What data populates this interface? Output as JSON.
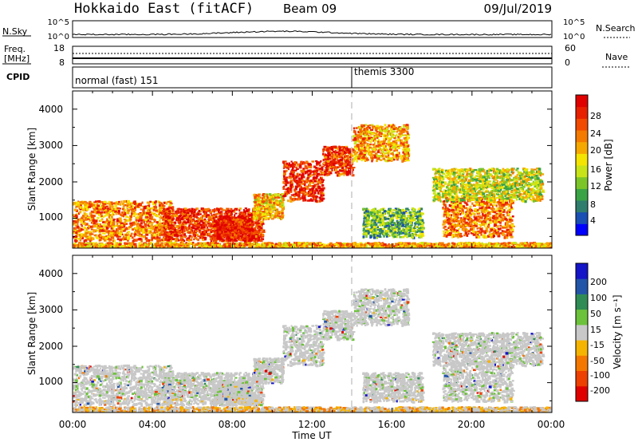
{
  "header": {
    "station": "Hokkaido East (fitACF)",
    "beam": "Beam 09",
    "date": "09/Jul/2019"
  },
  "noise_panel": {
    "left_label": "N.Sky",
    "right_label": "N.Search",
    "left_ticks": [
      "10^5",
      "10^0"
    ],
    "right_ticks": [
      "10^5",
      "10^0"
    ]
  },
  "freq_panel": {
    "left_label_1": "Freq.",
    "left_label_2": "[MHz]",
    "left_ticks": [
      "18",
      "8"
    ],
    "right_label": "Nave",
    "right_ticks": [
      "60",
      "0"
    ]
  },
  "cpid_panel": {
    "label": "CPID",
    "modes": [
      {
        "text": "normal (fast) 151",
        "start_hour": 0
      },
      {
        "text": "themis 3300",
        "start_hour": 14
      }
    ]
  },
  "axes": {
    "ylabel": "Slant Range [km]",
    "yticks": [
      "1000",
      "2000",
      "3000",
      "4000"
    ],
    "xlabel": "Time UT",
    "xticks": [
      "00:00",
      "04:00",
      "08:00",
      "12:00",
      "16:00",
      "20:00",
      "00:00"
    ]
  },
  "power_colorbar": {
    "label": "Power [dB]",
    "ticks": [
      "4",
      "8",
      "12",
      "16",
      "20",
      "24",
      "28"
    ],
    "colors": [
      "#0000ff",
      "#1a4fb4",
      "#2f7d6d",
      "#3aa346",
      "#7cc528",
      "#c8e418",
      "#f5e400",
      "#f7a800",
      "#f47a00",
      "#f24a00",
      "#e82000",
      "#e00000"
    ]
  },
  "velocity_colorbar": {
    "label": "Velocity [m s⁻¹]",
    "ticks": [
      "200",
      "100",
      "50",
      "15",
      "-15",
      "-50",
      "-100",
      "-200"
    ],
    "colors": [
      "#1414c8",
      "#2255a8",
      "#2f8c55",
      "#6cc23a",
      "#c8c8c8",
      "#f5b400",
      "#f47800",
      "#ee4000",
      "#e00000"
    ]
  },
  "chart_data": {
    "type": "heatmap",
    "title": "Hokkaido East (fitACF)",
    "xlabel": "Time UT",
    "ylabel": "Slant Range [km]",
    "x_range_hours": [
      0,
      24
    ],
    "y_range_km": [
      180,
      4500
    ],
    "mode_change_hour": 14,
    "scatter_regions": [
      {
        "t0": 0.0,
        "t1": 5.0,
        "r0": 400,
        "r1": 1500,
        "power_db": 22
      },
      {
        "t0": 4.5,
        "t1": 9.5,
        "r0": 400,
        "r1": 1300,
        "power_db": 26
      },
      {
        "t0": 7.0,
        "t1": 9.0,
        "r0": 400,
        "r1": 1100,
        "power_db": 28
      },
      {
        "t0": 9.0,
        "t1": 10.5,
        "r0": 1000,
        "r1": 1700,
        "power_db": 18
      },
      {
        "t0": 10.5,
        "t1": 12.5,
        "r0": 1500,
        "r1": 2600,
        "power_db": 27
      },
      {
        "t0": 12.5,
        "t1": 14.0,
        "r0": 2200,
        "r1": 3000,
        "power_db": 26
      },
      {
        "t0": 14.0,
        "t1": 16.8,
        "r0": 2600,
        "r1": 3600,
        "power_db": 20
      },
      {
        "t0": 14.5,
        "t1": 17.5,
        "r0": 500,
        "r1": 1300,
        "power_db": 10
      },
      {
        "t0": 18.5,
        "t1": 22.0,
        "r0": 500,
        "r1": 1600,
        "power_db": 22
      },
      {
        "t0": 18.0,
        "t1": 23.5,
        "r0": 1500,
        "r1": 2400,
        "power_db": 14
      },
      {
        "t0": 0.0,
        "t1": 24.0,
        "r0": 180,
        "r1": 350,
        "power_db": 20
      }
    ]
  }
}
